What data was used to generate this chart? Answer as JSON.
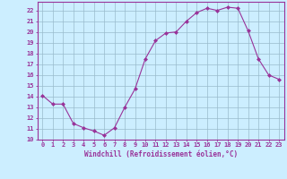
{
  "x": [
    0,
    1,
    2,
    3,
    4,
    5,
    6,
    7,
    8,
    9,
    10,
    11,
    12,
    13,
    14,
    15,
    16,
    17,
    18,
    19,
    20,
    21,
    22,
    23
  ],
  "y": [
    14.1,
    13.3,
    13.3,
    11.5,
    11.1,
    10.8,
    10.4,
    11.1,
    13.0,
    14.7,
    17.5,
    19.2,
    19.9,
    20.0,
    21.0,
    21.8,
    22.2,
    22.0,
    22.3,
    22.2,
    20.1,
    17.5,
    16.0,
    15.6
  ],
  "line_color": "#993399",
  "marker": "D",
  "marker_size": 2.0,
  "bg_color": "#cceeff",
  "grid_color": "#99bbcc",
  "xlabel": "Windchill (Refroidissement éolien,°C)",
  "ylabel_ticks": [
    10,
    11,
    12,
    13,
    14,
    15,
    16,
    17,
    18,
    19,
    20,
    21,
    22
  ],
  "xlim": [
    -0.5,
    23.5
  ],
  "ylim": [
    10,
    22.8
  ],
  "xtick_labels": [
    "0",
    "1",
    "2",
    "3",
    "4",
    "5",
    "6",
    "7",
    "8",
    "9",
    "10",
    "11",
    "12",
    "13",
    "14",
    "15",
    "16",
    "17",
    "18",
    "19",
    "20",
    "21",
    "22",
    "23"
  ],
  "axis_color": "#993399",
  "tick_color": "#993399",
  "label_color": "#993399",
  "tick_fontsize": 5.0,
  "xlabel_fontsize": 5.5
}
